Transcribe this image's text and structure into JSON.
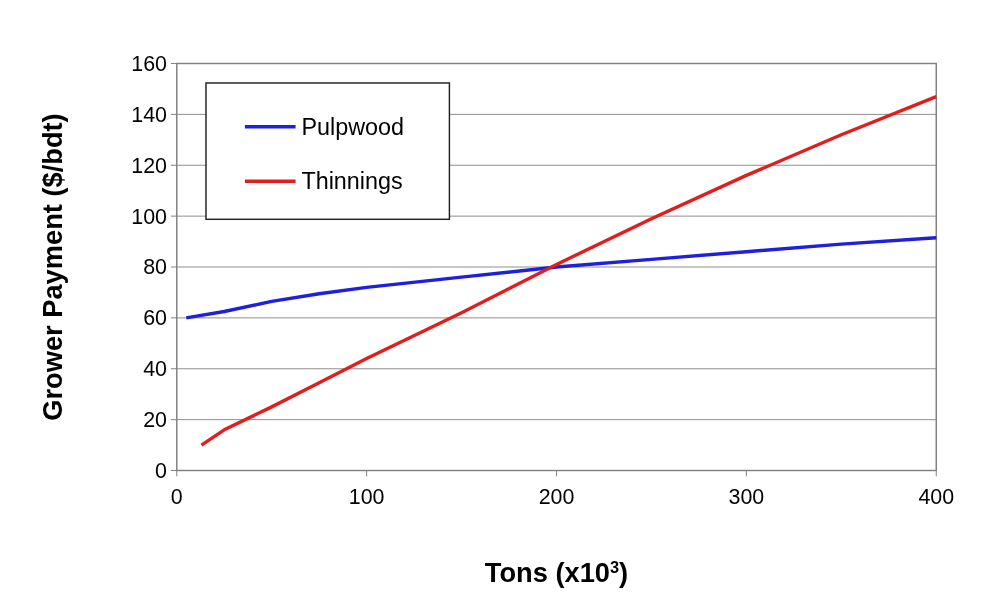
{
  "chart_data": {
    "type": "line",
    "xlabel": "Tons (x10$^{3}$)",
    "ylabel": "Grower Payment ($/bdt)",
    "xlim": [
      0,
      400
    ],
    "xticks": [
      0,
      100,
      200,
      300,
      400
    ],
    "ylim": [
      0,
      160
    ],
    "yticks": [
      0,
      20,
      40,
      60,
      80,
      100,
      120,
      140,
      160
    ],
    "grid": "y",
    "legend": "top left",
    "marker": "none",
    "line_style": "solid",
    "series": [
      {
        "name": "Pulpwood",
        "color": "#1f1fdc",
        "x": [
          5,
          25,
          50,
          75,
          100,
          150,
          200,
          250,
          300,
          350,
          400
        ],
        "values": [
          60,
          62.5,
          66.5,
          69.5,
          72,
          76,
          80,
          83,
          86,
          89,
          91.5
        ]
      },
      {
        "name": "Thinnings",
        "color": "#e01e1e",
        "x": [
          13,
          25,
          50,
          75,
          100,
          150,
          200,
          250,
          300,
          350,
          400
        ],
        "values": [
          10,
          16,
          25,
          34.5,
          44,
          62,
          81,
          99,
          116,
          132,
          147
        ]
      }
    ]
  }
}
